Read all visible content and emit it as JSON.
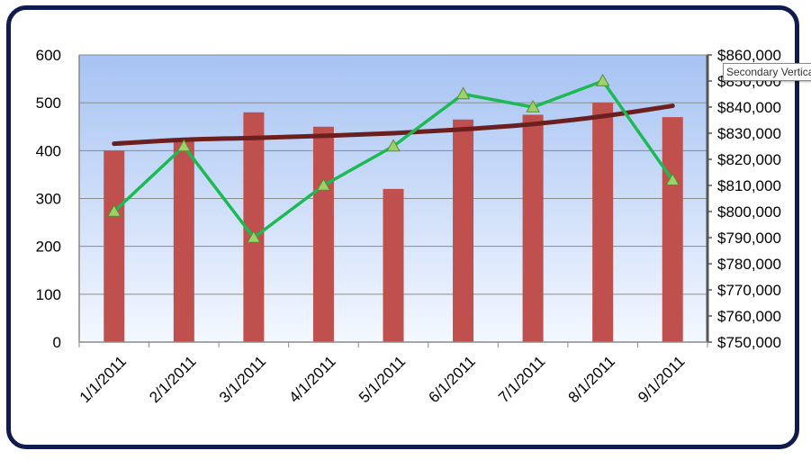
{
  "chart_data": {
    "type": "bar",
    "categories": [
      "1/1/2011",
      "2/1/2011",
      "3/1/2011",
      "4/1/2011",
      "5/1/2011",
      "6/1/2011",
      "7/1/2011",
      "8/1/2011",
      "9/1/2011"
    ],
    "series": [
      {
        "type": "bar",
        "axis": "primary",
        "color": "#c0504d",
        "values": [
          400,
          425,
          480,
          450,
          320,
          465,
          475,
          500,
          470
        ]
      },
      {
        "type": "line",
        "axis": "secondary",
        "color": "#1db954",
        "marker": "triangle",
        "values": [
          800000,
          825000,
          790000,
          810000,
          825000,
          845000,
          840000,
          850000,
          812000
        ]
      },
      {
        "type": "trendline",
        "axis": "secondary",
        "color": "#6b1f1f",
        "values": [
          826000,
          827500,
          828200,
          829000,
          830000,
          831500,
          833500,
          836500,
          840500
        ]
      }
    ],
    "y_primary": {
      "min": 0,
      "max": 600,
      "ticks": [
        "0",
        "100",
        "200",
        "300",
        "400",
        "500",
        "600"
      ]
    },
    "y_secondary": {
      "min": 750000,
      "max": 860000,
      "ticks": [
        "$750,000",
        "$760,000",
        "$770,000",
        "$780,000",
        "$790,000",
        "$800,000",
        "$810,000",
        "$820,000",
        "$830,000",
        "$840,000",
        "$850,000",
        "$860,000"
      ]
    },
    "grid": true,
    "plot_background": [
      "#a6c3f2",
      "#f4f8ff"
    ]
  },
  "tooltip": {
    "text": "Secondary Vertica"
  }
}
